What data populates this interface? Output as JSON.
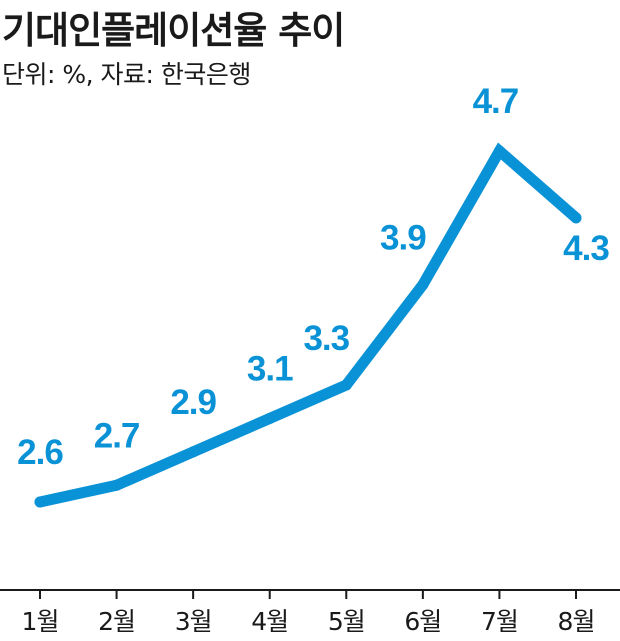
{
  "title": "기대인플레이션율 추이",
  "subtitle": "단위: %, 자료: 한국은행",
  "colors": {
    "line": "#0a92d6",
    "text": "#1a1a1a",
    "axis": "#1a1a1a"
  },
  "chart_data": {
    "type": "line",
    "categories": [
      "1월",
      "2월",
      "3월",
      "4월",
      "5월",
      "6월",
      "7월",
      "8월"
    ],
    "values": [
      2.6,
      2.7,
      2.9,
      3.1,
      3.3,
      3.9,
      4.7,
      4.3
    ],
    "data_labels": [
      "2.6",
      "2.7",
      "2.9",
      "3.1",
      "3.3",
      "3.9",
      "4.7",
      "4.3"
    ],
    "title": "기대인플레이션율 추이",
    "xlabel": "",
    "ylabel": "",
    "grid": false,
    "legend": "none"
  }
}
